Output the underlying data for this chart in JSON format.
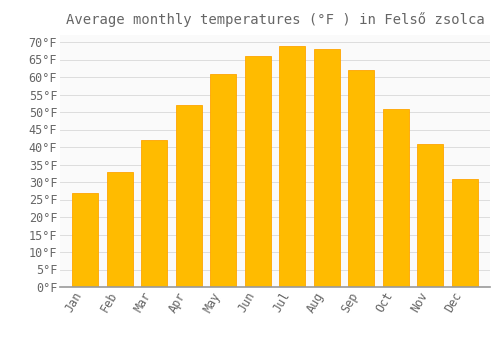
{
  "title": "Average monthly temperatures (°F ) in Felső zsolca",
  "months": [
    "Jan",
    "Feb",
    "Mar",
    "Apr",
    "May",
    "Jun",
    "Jul",
    "Aug",
    "Sep",
    "Oct",
    "Nov",
    "Dec"
  ],
  "values": [
    27,
    33,
    42,
    52,
    61,
    66,
    69,
    68,
    62,
    51,
    41,
    31
  ],
  "bar_color": "#FFBB00",
  "bar_edge_color": "#FFA500",
  "background_color": "#FFFFFF",
  "plot_bg_color": "#FAFAFA",
  "grid_color": "#DDDDDD",
  "text_color": "#666666",
  "ylim": [
    0,
    72
  ],
  "yticks": [
    0,
    5,
    10,
    15,
    20,
    25,
    30,
    35,
    40,
    45,
    50,
    55,
    60,
    65,
    70
  ],
  "title_fontsize": 10,
  "tick_fontsize": 8.5
}
